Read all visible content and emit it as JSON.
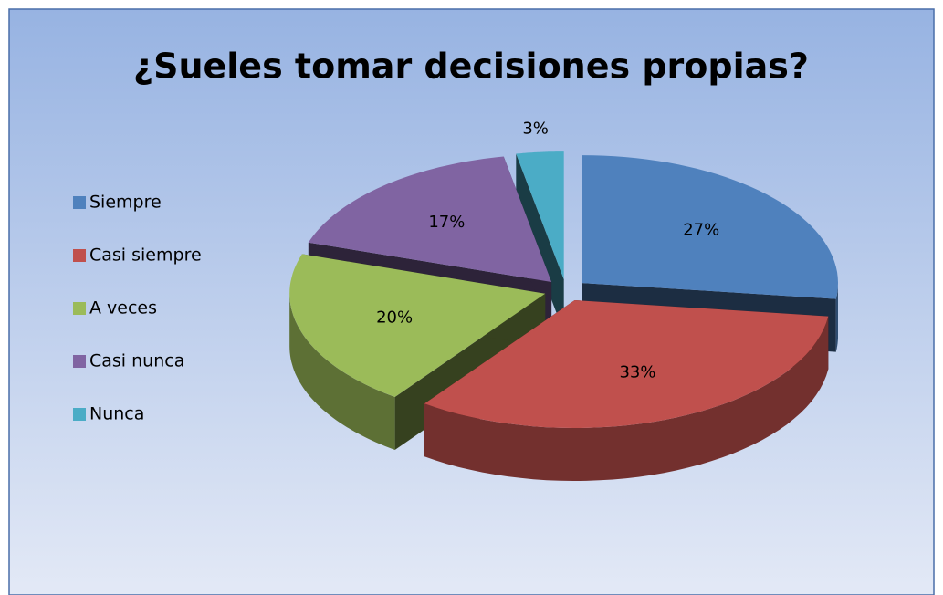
{
  "chart_data": {
    "type": "pie",
    "title": "¿Sueles tomar decisiones propias?",
    "categories": [
      "Siempre",
      "Casi siempre",
      "A veces",
      "Casi nunca",
      "Nunca"
    ],
    "values": [
      27,
      33,
      20,
      17,
      3
    ],
    "value_labels": [
      "27%",
      "33%",
      "20%",
      "17%",
      "3%"
    ],
    "colors": [
      "#4f81bd",
      "#c0504d",
      "#9bbb59",
      "#8064a2",
      "#4bacc6"
    ],
    "legend": "left"
  }
}
